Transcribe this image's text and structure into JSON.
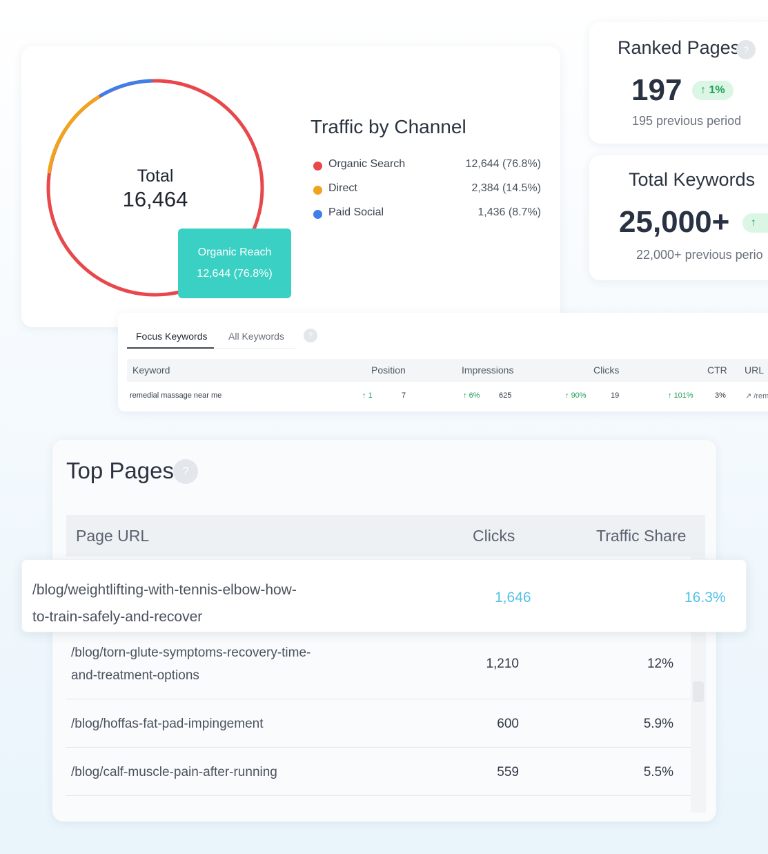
{
  "traffic": {
    "title": "Traffic by Channel",
    "total_label": "Total",
    "total_value": "16,464",
    "tooltip": {
      "label": "Organic Reach",
      "value": "12,644 (76.8%)"
    },
    "channels": [
      {
        "name": "Organic Search",
        "value": "12,644 (76.8%)",
        "color": "#e8474b"
      },
      {
        "name": "Direct",
        "value": "2,384 (14.5%)",
        "color": "#f0a31c"
      },
      {
        "name": "Paid Social",
        "value": "1,436 (8.7%)",
        "color": "#3f7fe8"
      }
    ]
  },
  "ranked_pages": {
    "title": "Ranked Pages",
    "help": "?",
    "value": "197",
    "change": "1%",
    "change_icon": "arrow-up-icon",
    "previous": "195 previous period"
  },
  "total_keywords": {
    "title": "Total Keywords",
    "value": "25,000+",
    "change_icon": "arrow-up-icon",
    "previous": "22,000+  previous perio"
  },
  "keyword_table": {
    "tabs": [
      "Focus Keywords",
      "All Keywords"
    ],
    "help": "?",
    "headers": [
      "Keyword",
      "Position",
      "Impressions",
      "Clicks",
      "CTR",
      "URL"
    ],
    "rows": [
      {
        "keyword": "remedial massage near me",
        "position_change": "1",
        "position": "7",
        "impressions_change": "6%",
        "impressions": "625",
        "clicks_change": "90%",
        "clicks": "19",
        "ctr_change": "101%",
        "ctr": "3%",
        "url": "/rem"
      }
    ]
  },
  "top_pages": {
    "title": "Top Pages",
    "help": "?",
    "headers": [
      "Page URL",
      "Clicks",
      "Traffic Share"
    ],
    "highlight": {
      "url_line1": "/blog/weightlifting-with-tennis-elbow-how-",
      "url_line2": "to-train-safely-and-recover",
      "clicks": "1,646",
      "share": "16.3%",
      "accent": "#53c1e6"
    },
    "rows": [
      {
        "url_line1": "/blog/torn-glute-symptoms-recovery-time-",
        "url_line2": "and-treatment-options",
        "clicks": "1,210",
        "share": "12%"
      },
      {
        "url_line1": "/blog/hoffas-fat-pad-impingement",
        "clicks": "600",
        "share": "5.9%"
      },
      {
        "url_line1": "/blog/calf-muscle-pain-after-running",
        "clicks": "559",
        "share": "5.5%"
      }
    ]
  }
}
